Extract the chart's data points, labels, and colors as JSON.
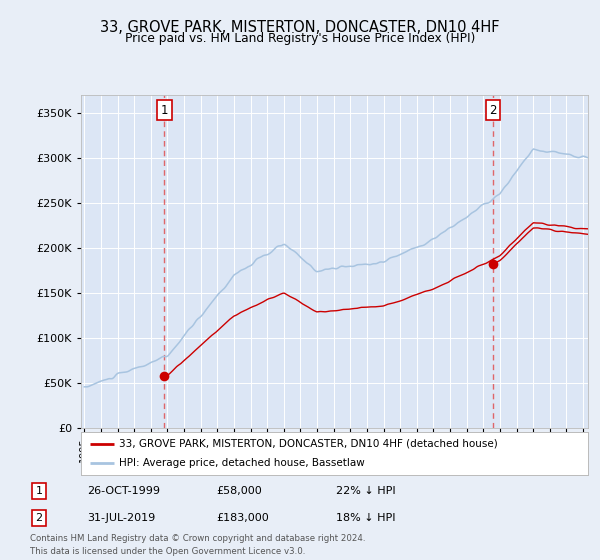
{
  "title": "33, GROVE PARK, MISTERTON, DONCASTER, DN10 4HF",
  "subtitle": "Price paid vs. HM Land Registry's House Price Index (HPI)",
  "legend_line1": "33, GROVE PARK, MISTERTON, DONCASTER, DN10 4HF (detached house)",
  "legend_line2": "HPI: Average price, detached house, Bassetlaw",
  "footnote1": "Contains HM Land Registry data © Crown copyright and database right 2024.",
  "footnote2": "This data is licensed under the Open Government Licence v3.0.",
  "annotation1_label": "1",
  "annotation1_date": "26-OCT-1999",
  "annotation1_price": "£58,000",
  "annotation1_hpi": "22% ↓ HPI",
  "annotation2_label": "2",
  "annotation2_date": "31-JUL-2019",
  "annotation2_price": "£183,000",
  "annotation2_hpi": "18% ↓ HPI",
  "hpi_color": "#a8c4e0",
  "price_color": "#cc0000",
  "background_color": "#e8eef7",
  "plot_bg": "#dce6f5",
  "ylim": [
    0,
    370000
  ],
  "yticks": [
    0,
    50000,
    100000,
    150000,
    200000,
    250000,
    300000,
    350000
  ],
  "sale1_x": 1999.82,
  "sale1_y": 58000,
  "sale2_x": 2019.58,
  "sale2_y": 183000,
  "vline1_x": 1999.82,
  "vline2_x": 2019.58,
  "xmin": 1995.0,
  "xmax": 2025.3
}
